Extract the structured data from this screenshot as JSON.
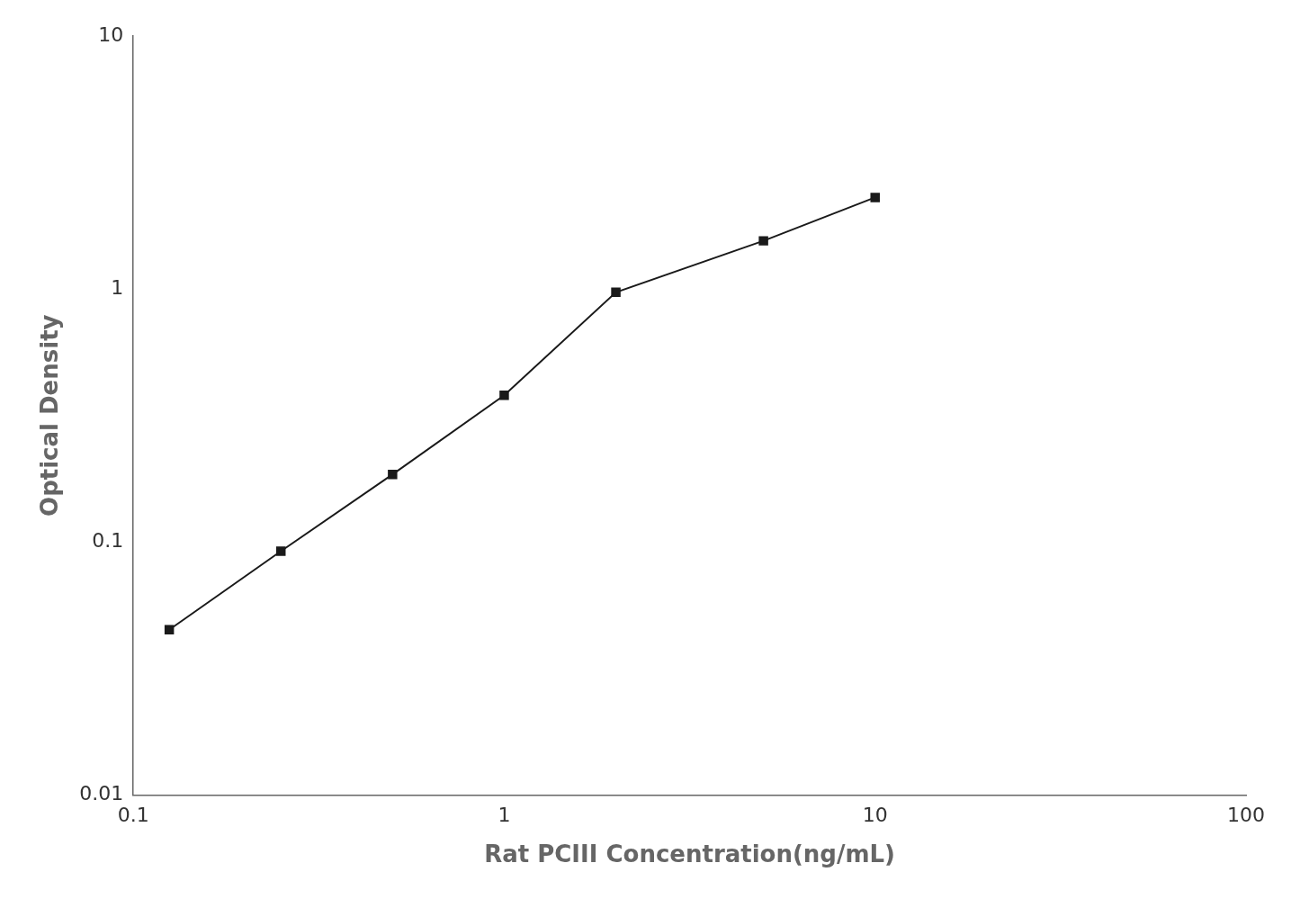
{
  "chart_data": {
    "type": "line",
    "x": [
      0.125,
      0.25,
      0.5,
      1.0,
      2.0,
      5.0,
      10.0
    ],
    "values": [
      0.045,
      0.092,
      0.185,
      0.38,
      0.97,
      1.55,
      2.3
    ],
    "xlabel": "Rat PCIII Concentration(ng/mL)",
    "ylabel": "Optical Density",
    "xlim": [
      0.1,
      100
    ],
    "ylim": [
      0.01,
      10
    ],
    "xticks": [
      0.1,
      1,
      10,
      100
    ],
    "yticks": [
      0.01,
      0.1,
      1,
      10
    ],
    "log": true,
    "grid": false,
    "color": "#1a1a1a",
    "marker": "square"
  }
}
